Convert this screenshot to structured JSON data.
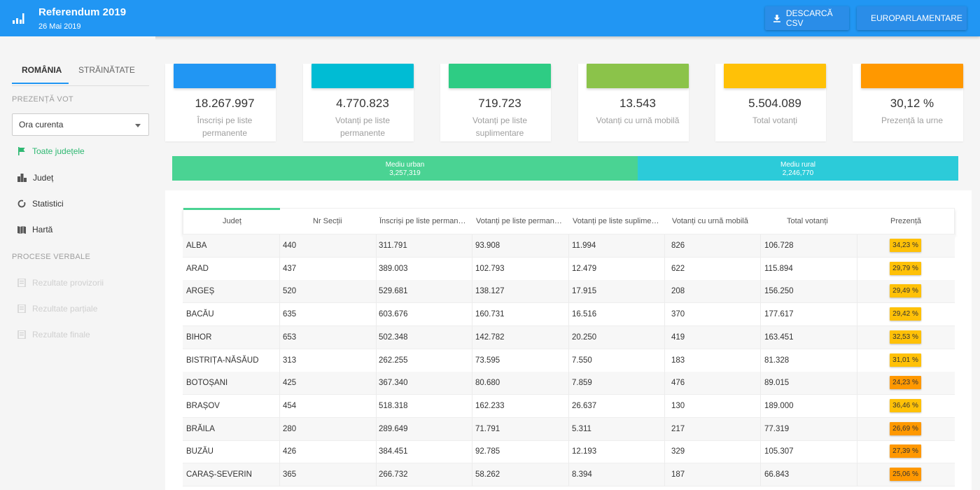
{
  "header": {
    "title": "Referendum 2019",
    "subtitle": "26 Mai 2019",
    "buttons": {
      "csv": "DESCARCĂ CSV",
      "euro": "EUROPARLAMENTARE"
    },
    "icons": {
      "logo": "bar-chart-icon",
      "csv": "download-icon",
      "euro": "swap-icon"
    }
  },
  "sidebar": {
    "tabs": [
      "ROMÂNIA",
      "STRĂINĂTATE"
    ],
    "section_vote": "PREZENȚĂ VOT",
    "select_value": "Ora curenta",
    "nav": [
      {
        "label": "Toate județele",
        "icon": "flag-icon",
        "active": true
      },
      {
        "label": "Județ",
        "icon": "building-icon",
        "active": false
      },
      {
        "label": "Statistici",
        "icon": "spinner-icon",
        "active": false
      },
      {
        "label": "Hartă",
        "icon": "map-icon",
        "active": false
      }
    ],
    "section_pv": "PROCESE VERBALE",
    "pv": [
      "Rezultate provizorii",
      "Rezultate parțiale",
      "Rezultate finale"
    ]
  },
  "stats": [
    {
      "value": "18.267.997",
      "label": "Înscriși pe liste permanente",
      "color": "#2196f3"
    },
    {
      "value": "4.770.823",
      "label": "Votanți pe liste permanente",
      "color": "#00bcd4"
    },
    {
      "value": "719.723",
      "label": "Votanți pe liste suplimentare",
      "color": "#2ecc84"
    },
    {
      "value": "13.543",
      "label": "Votanți cu urnă mobilă",
      "color": "#8bc34a"
    },
    {
      "value": "5.504.089",
      "label": "Total votanți",
      "color": "#ffc107"
    },
    {
      "value": "30,12 %",
      "label": "Prezență la urne",
      "color": "#ff9800"
    }
  ],
  "urban_rural": {
    "urban": {
      "label": "Mediu urban",
      "value": "3,257,319",
      "color": "#4ad393"
    },
    "rural": {
      "label": "Mediu rural",
      "value": "2,246,770",
      "color": "#2ccbd9"
    }
  },
  "table": {
    "columns": [
      "Județ",
      "Nr Secții",
      "Înscriși pe liste permanente",
      "Votanți pe liste permanente",
      "Votanți pe liste suplimentare",
      "Votanți cu urnă mobilă",
      "Total votanți",
      "Prezență"
    ],
    "rows": [
      [
        "ALBA",
        "440",
        "311.791",
        "93.908",
        "11.994",
        "826",
        "106.728",
        "34,23 %"
      ],
      [
        "ARAD",
        "437",
        "389.003",
        "102.793",
        "12.479",
        "622",
        "115.894",
        "29,79 %"
      ],
      [
        "ARGEȘ",
        "520",
        "529.681",
        "138.127",
        "17.915",
        "208",
        "156.250",
        "29,49 %"
      ],
      [
        "BACĂU",
        "635",
        "603.676",
        "160.731",
        "16.516",
        "370",
        "177.617",
        "29,42 %"
      ],
      [
        "BIHOR",
        "653",
        "502.348",
        "142.782",
        "20.250",
        "419",
        "163.451",
        "32,53 %"
      ],
      [
        "BISTRIȚA-NĂSĂUD",
        "313",
        "262.255",
        "73.595",
        "7.550",
        "183",
        "81.328",
        "31,01 %"
      ],
      [
        "BOTOȘANI",
        "425",
        "367.340",
        "80.680",
        "7.859",
        "476",
        "89.015",
        "24,23 %"
      ],
      [
        "BRAȘOV",
        "454",
        "518.318",
        "162.233",
        "26.637",
        "130",
        "189.000",
        "36,46 %"
      ],
      [
        "BRĂILA",
        "280",
        "289.649",
        "71.791",
        "5.311",
        "217",
        "77.319",
        "26,69 %"
      ],
      [
        "BUZĂU",
        "426",
        "384.451",
        "92.785",
        "12.193",
        "329",
        "105.307",
        "27,39 %"
      ],
      [
        "CARAȘ-SEVERIN",
        "365",
        "266.732",
        "58.262",
        "8.394",
        "187",
        "66.843",
        "25,06 %"
      ]
    ],
    "badge_colors": [
      "#ffc107",
      "#ffc107",
      "#ffc107",
      "#ffc107",
      "#ffc107",
      "#ffc107",
      "#ff9800",
      "#ffc107",
      "#ff9800",
      "#ff9800",
      "#ff9800"
    ]
  }
}
